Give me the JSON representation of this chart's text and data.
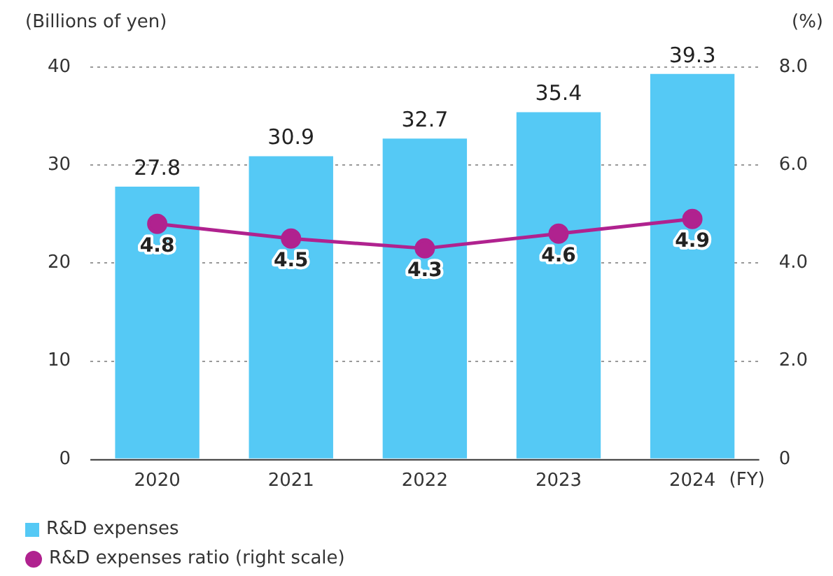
{
  "chart_data": {
    "type": "bar",
    "ylabel": "(Billions of yen)",
    "y2label": "(%)",
    "xlabel": "(FY)",
    "categories": [
      "2020",
      "2021",
      "2022",
      "2023",
      "2024"
    ],
    "series": [
      {
        "name": "R&D expenses",
        "color": "#55c9f5",
        "values": [
          27.8,
          30.9,
          32.7,
          35.4,
          39.3
        ]
      },
      {
        "name": "R&D expenses ratio (right scale)",
        "type": "line",
        "axis": "y2",
        "color": "#b0228f",
        "marker": "circle",
        "values": [
          4.8,
          4.5,
          4.3,
          4.6,
          4.9
        ]
      }
    ],
    "ylim": [
      0,
      40
    ],
    "yticks": [
      0,
      10,
      20,
      30,
      40
    ],
    "y2lim": [
      0,
      8
    ],
    "y2ticks": [
      {
        "value": 0,
        "label": "0"
      },
      {
        "value": 2,
        "label": "2.0"
      },
      {
        "value": 4,
        "label": "4.0"
      },
      {
        "value": 6,
        "label": "6.0"
      },
      {
        "value": 8,
        "label": "8.0"
      }
    ],
    "grid": "y",
    "data_labels": true,
    "legend": "bottom left"
  }
}
